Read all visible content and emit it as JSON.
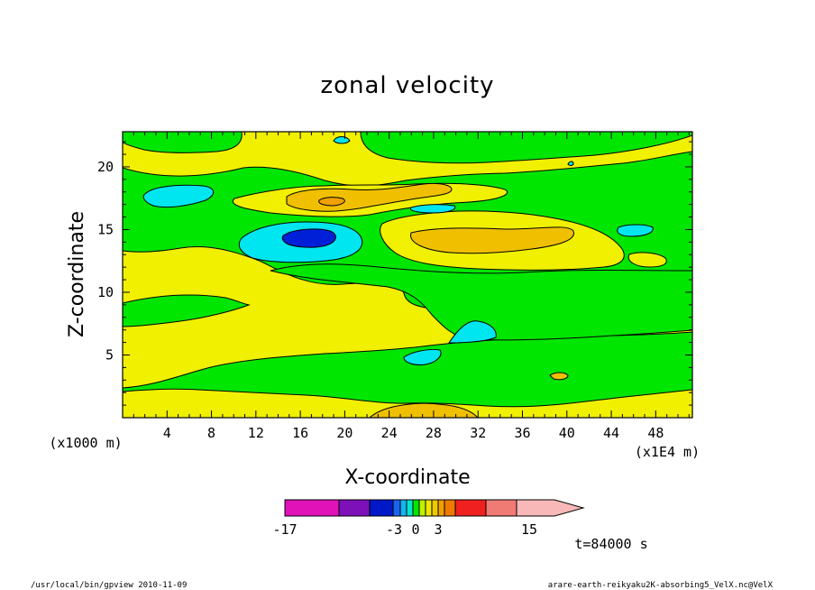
{
  "chart_data": {
    "type": "heatmap",
    "title": "zonal velocity",
    "xlabel": "X-coordinate",
    "ylabel": "Z-coordinate",
    "x_unit": "(x1E4 m)",
    "y_unit": "(x1000 m)",
    "x_ticks": [
      "4",
      "8",
      "12",
      "16",
      "20",
      "24",
      "28",
      "32",
      "36",
      "40",
      "44",
      "48"
    ],
    "y_ticks": [
      "5",
      "10",
      "15",
      "20"
    ],
    "xlim": [
      0,
      51.3
    ],
    "ylim": [
      0,
      22.8
    ],
    "colorbar": {
      "labels": [
        {
          "text": "-17",
          "value": -17
        },
        {
          "text": "-3",
          "value": -3
        },
        {
          "text": "0",
          "value": 0
        },
        {
          "text": "3",
          "value": 3
        },
        {
          "text": "15",
          "value": 15
        }
      ],
      "colors": [
        "#e012b8",
        "#7d10b8",
        "#0018c8",
        "#1a64f0",
        "#14b4f0",
        "#00e6d2",
        "#00e600",
        "#bef000",
        "#f0e600",
        "#f0c800",
        "#f0a000",
        "#f07a00",
        "#f02020",
        "#f07a74",
        "#f8b8b8"
      ]
    },
    "regions": [
      {
        "level": "0 to 1",
        "color": "#00e600"
      },
      {
        "level": "-1 to 0",
        "color": "#f0f000"
      },
      {
        "level": "1 to 2",
        "color": "#f0c000"
      },
      {
        "level": "2 to 3",
        "color": "#f0a000"
      },
      {
        "level": "-2 to -1",
        "color": "#00e6f0"
      },
      {
        "level": "-3 to -2",
        "color": "#0020d8"
      }
    ],
    "time_label": "t=84000 s"
  },
  "footer": {
    "left": "/usr/local/bin/gpview  2010-11-09",
    "right": "arare-earth-reikyaku2K-absorbing5_VelX.nc@VelX"
  }
}
